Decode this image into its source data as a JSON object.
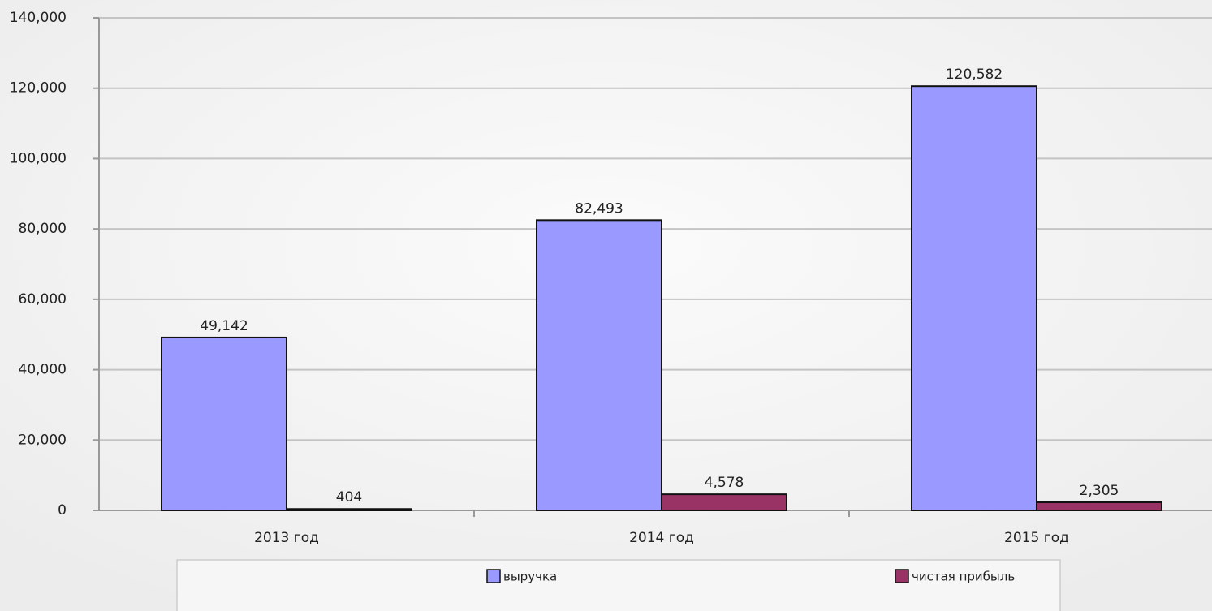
{
  "chart_data": {
    "type": "bar",
    "categories": [
      "2013 год",
      "2014 год",
      "2015 год"
    ],
    "series": [
      {
        "name": "выручка",
        "color": "#9999ff",
        "values": [
          49142,
          82493,
          120582
        ],
        "value_labels": [
          "49,142",
          "82,493",
          "120,582"
        ]
      },
      {
        "name": "чистая прибыль",
        "color": "#993366",
        "values": [
          404,
          4578,
          2305
        ],
        "value_labels": [
          "404",
          "4,578",
          "2,305"
        ]
      }
    ],
    "ylim": [
      0,
      140000
    ],
    "yticks": [
      0,
      {
        "value": 20000,
        "label": "20,000"
      },
      {
        "value": 40000,
        "label": "40,000"
      },
      {
        "value": 60000,
        "label": "60,000"
      },
      {
        "value": 80000,
        "label": "80,000"
      },
      {
        "value": 100000,
        "label": "100,000"
      },
      {
        "value": 120000,
        "label": "120,000"
      },
      {
        "value": 140000,
        "label": "140,000"
      }
    ],
    "grid": true,
    "legend": "bottom"
  }
}
